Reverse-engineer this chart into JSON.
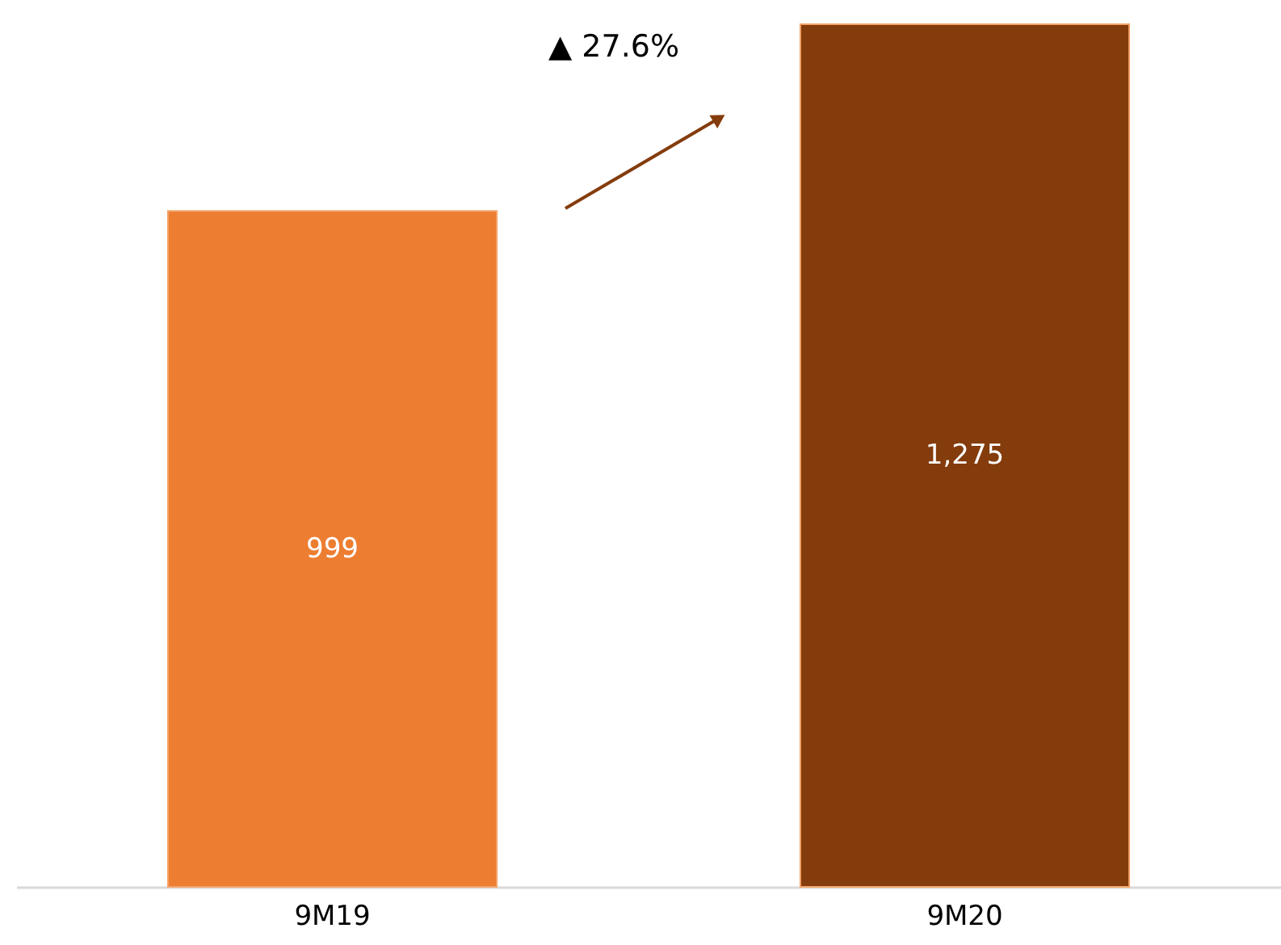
{
  "chart_data": {
    "type": "bar",
    "categories": [
      "9M19",
      "9M20"
    ],
    "values": [
      999,
      1275
    ],
    "colors": [
      "#ed7d31",
      "#843c0c"
    ],
    "value_labels": [
      "999",
      "1,275"
    ],
    "ylim": [
      0,
      1275
    ],
    "tick_labels": "x",
    "grid": false,
    "annotations": [
      "▲ 27.6%"
    ]
  }
}
